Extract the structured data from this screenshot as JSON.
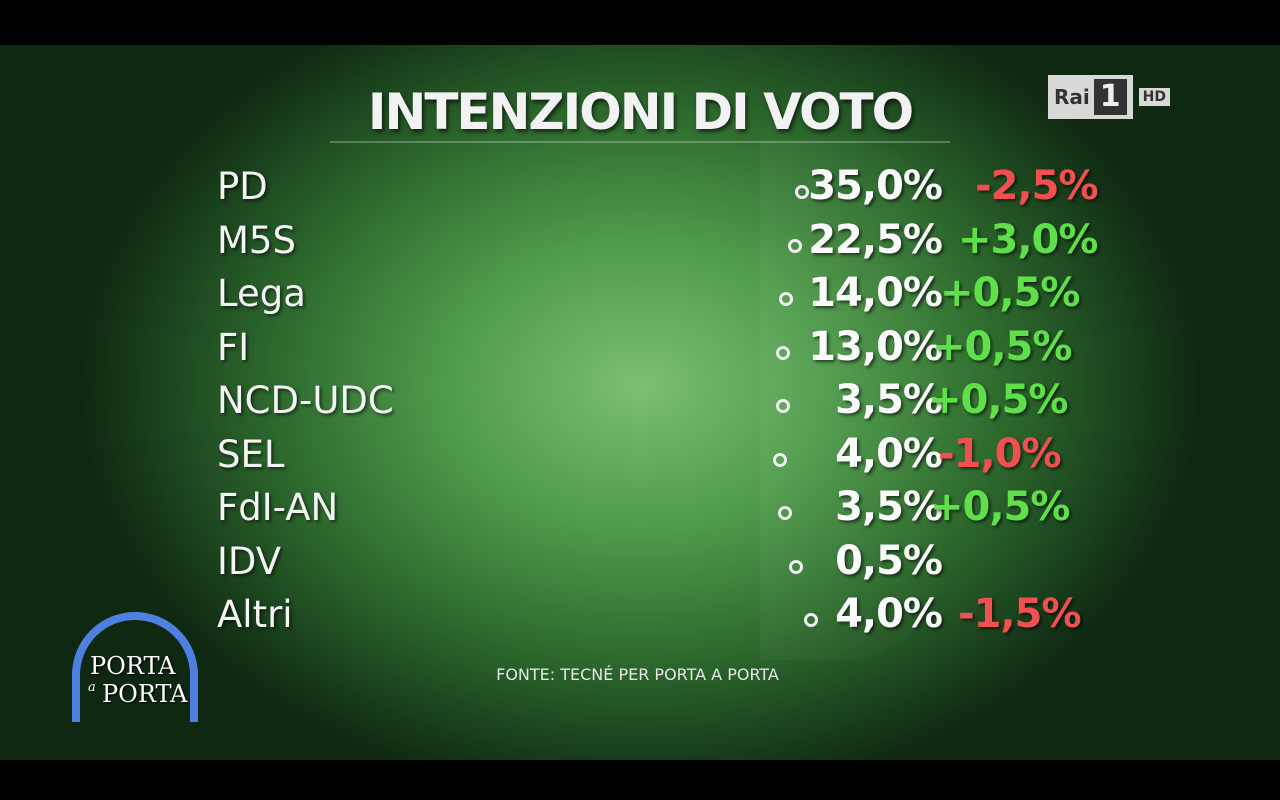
{
  "header": {
    "title": "INTENZIONI DI VOTO",
    "channel": "Rai",
    "channel_number": "1",
    "channel_quality": "HD"
  },
  "table": {
    "rows": [
      [
        "PD",
        "35,0%",
        "-2,5%"
      ],
      [
        "M5S",
        "22,5%",
        "+3,0%"
      ],
      [
        "Lega",
        "14,0%",
        "+0,5%"
      ],
      [
        "FI",
        "13,0%",
        "+0,5%"
      ],
      [
        "NCD-UDC",
        "3,5%",
        "+0,5%"
      ],
      [
        "SEL",
        "4,0%",
        "-1,0%"
      ],
      [
        "FdI-AN",
        "3,5%",
        "+0,5%"
      ],
      [
        "IDV",
        "0,5%",
        null
      ],
      [
        "Altri",
        "4,0%",
        "-1,5%"
      ]
    ]
  },
  "footer": {
    "source": "FONTE: TECNÉ PER PORTA A PORTA",
    "show_logo_top": "PORTA",
    "show_logo_bottom": "PORTA",
    "show_logo_middle": "a"
  }
}
